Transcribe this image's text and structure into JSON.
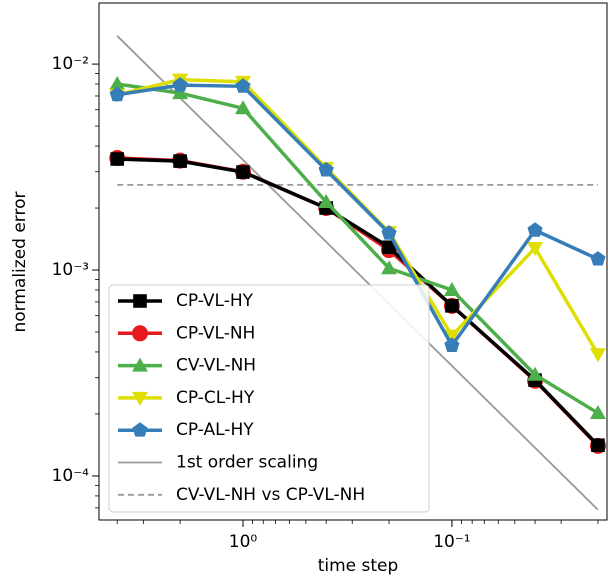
{
  "chart_data": {
    "type": "line",
    "xlabel": "time step",
    "ylabel": "normalized error",
    "xscale": "log",
    "yscale": "log",
    "xlim": [
      4.89,
      0.0181
    ],
    "ylim": [
      6.11e-05,
      0.0198
    ],
    "xticks": [
      {
        "value": 1,
        "label": "10⁰"
      },
      {
        "value": 0.1,
        "label": "10⁻¹"
      }
    ],
    "yticks": [
      {
        "value": 0.01,
        "label": "10⁻²"
      },
      {
        "value": 0.001,
        "label": "10⁻³"
      },
      {
        "value": 0.0001,
        "label": "10⁻⁴"
      }
    ],
    "xminorticks": [
      4,
      3,
      2,
      0.9,
      0.8,
      0.7,
      0.6,
      0.5,
      0.4,
      0.3,
      0.2,
      0.09,
      0.08,
      0.07,
      0.06,
      0.05,
      0.04,
      0.03,
      0.02
    ],
    "yminorticks": [
      7e-05,
      8e-05,
      9e-05,
      0.0002,
      0.0003,
      0.0004,
      0.0005,
      0.0006,
      0.0007,
      0.0008,
      0.0009,
      0.002,
      0.003,
      0.004,
      0.005,
      0.006,
      0.007,
      0.008,
      0.009
    ],
    "legend": "lower left",
    "series": [
      {
        "name": "CP-VL-HY",
        "color": "#000000",
        "marker": "square",
        "x": [
          4,
          2,
          1,
          0.4,
          0.2,
          0.1,
          0.04,
          0.02
        ],
        "values": [
          0.00346,
          0.00338,
          0.00299,
          0.002,
          0.00129,
          0.00067,
          0.000292,
          0.000141
        ]
      },
      {
        "name": "CP-VL-NH",
        "color": "#e41a1c",
        "marker": "circle",
        "x": [
          4,
          2,
          1,
          0.4,
          0.2,
          0.1,
          0.04,
          0.02
        ],
        "values": [
          0.0035,
          0.0034,
          0.003,
          0.002,
          0.00125,
          0.00067,
          0.00029,
          0.00014
        ]
      },
      {
        "name": "CV-VL-NH",
        "color": "#4daf4a",
        "marker": "triangle-up",
        "x": [
          4,
          2,
          1,
          0.4,
          0.2,
          0.1,
          0.04,
          0.02
        ],
        "values": [
          0.008,
          0.00723,
          0.0061,
          0.00214,
          0.00102,
          0.0008,
          0.00031,
          0.000202
        ]
      },
      {
        "name": "CP-CL-HY",
        "color": "#dede00",
        "marker": "triangle-down",
        "x": [
          4,
          2,
          1,
          0.4,
          0.2,
          0.1,
          0.04,
          0.02
        ],
        "values": [
          0.0071,
          0.0084,
          0.0082,
          0.00313,
          0.00153,
          0.00048,
          0.00128,
          0.00039
        ]
      },
      {
        "name": "CP-AL-HY",
        "color": "#377eb8",
        "marker": "pentagon",
        "x": [
          4,
          2,
          1,
          0.4,
          0.2,
          0.1,
          0.04,
          0.02
        ],
        "values": [
          0.0071,
          0.0079,
          0.0078,
          0.00306,
          0.00151,
          0.00043,
          0.00156,
          0.00113
        ]
      },
      {
        "name": "1st order scaling",
        "color": "#999999",
        "line": "solid",
        "x": [
          4,
          0.02
        ],
        "values": [
          0.0137,
          6.85e-05
        ]
      },
      {
        "name": "CV-VL-NH vs CP-VL-NH",
        "color": "#999999",
        "line": "dashed",
        "x": [
          4,
          0.02
        ],
        "values": [
          0.00259,
          0.00259
        ]
      }
    ]
  }
}
